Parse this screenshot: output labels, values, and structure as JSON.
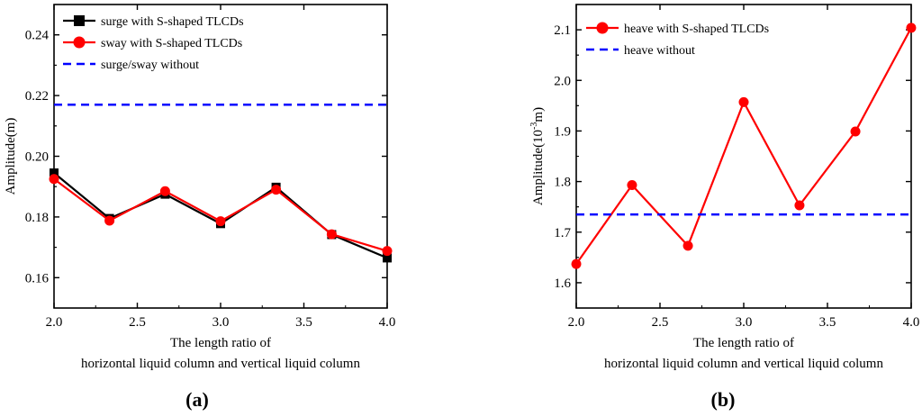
{
  "chart_data": [
    {
      "type": "line",
      "panel_label": "(a)",
      "xlabel_lines": [
        "The length ratio of",
        "horizontal liquid column and vertical liquid column"
      ],
      "ylabel": "Amplitude(m)",
      "xlim": [
        2.0,
        4.0
      ],
      "ylim": [
        0.15,
        0.25
      ],
      "xticks": [
        2.0,
        2.5,
        3.0,
        3.5,
        4.0
      ],
      "xtick_labels": [
        "2.0",
        "2.5",
        "3.0",
        "3.5",
        "4.0"
      ],
      "yticks": [
        0.16,
        0.18,
        0.2,
        0.22,
        0.24
      ],
      "ytick_labels": [
        "0.16",
        "0.18",
        "0.20",
        "0.22",
        "0.24"
      ],
      "legend_position": "top-left",
      "x": [
        2.0,
        2.333,
        2.667,
        3.0,
        3.333,
        3.667,
        4.0
      ],
      "series": [
        {
          "name": "surge with S-shaped TLCDs",
          "color": "#000000",
          "marker": "square",
          "values": [
            0.1945,
            0.1795,
            0.1875,
            0.1778,
            0.1898,
            0.1742,
            0.1665
          ]
        },
        {
          "name": "sway  with S-shaped TLCDs",
          "color": "#ff0000",
          "marker": "circle",
          "values": [
            0.1925,
            0.1788,
            0.1885,
            0.1786,
            0.189,
            0.1743,
            0.1688
          ]
        },
        {
          "name": "surge/sway without",
          "color": "#0000ff",
          "marker": "none",
          "dashed": true,
          "values": [
            0.217,
            0.217,
            0.217,
            0.217,
            0.217,
            0.217,
            0.217
          ]
        }
      ]
    },
    {
      "type": "line",
      "panel_label": "(b)",
      "xlabel_lines": [
        "The length ratio of",
        "horizontal liquid column and vertical liquid column"
      ],
      "ylabel": "Amplitude(10",
      "ylabel_sup": "-3",
      "ylabel_suffix": "m)",
      "xlim": [
        2.0,
        4.0
      ],
      "ylim": [
        1.55,
        2.15
      ],
      "xticks": [
        2.0,
        2.5,
        3.0,
        3.5,
        4.0
      ],
      "xtick_labels": [
        "2.0",
        "2.5",
        "3.0",
        "3.5",
        "4.0"
      ],
      "yticks": [
        1.6,
        1.7,
        1.8,
        1.9,
        2.0,
        2.1
      ],
      "ytick_labels": [
        "1.6",
        "1.7",
        "1.8",
        "1.9",
        "2.0",
        "2.1"
      ],
      "legend_position": "top-left",
      "x": [
        2.0,
        2.333,
        2.667,
        3.0,
        3.333,
        3.667,
        4.0
      ],
      "series": [
        {
          "name": "heave with S-shaped TLCDs",
          "color": "#ff0000",
          "marker": "circle",
          "values": [
            1.637,
            1.793,
            1.673,
            1.957,
            1.753,
            1.899,
            2.104
          ]
        },
        {
          "name": "heave without",
          "color": "#0000ff",
          "marker": "none",
          "dashed": true,
          "values": [
            1.735,
            1.735,
            1.735,
            1.735,
            1.735,
            1.735,
            1.735
          ]
        }
      ]
    }
  ]
}
